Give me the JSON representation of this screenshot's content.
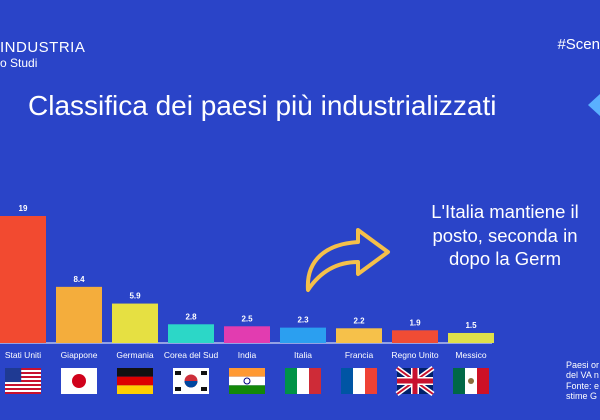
{
  "brand": {
    "line1": "INDUSTRIA",
    "line2": "o Studi"
  },
  "hashtag": "#Scen",
  "title": "Classifica dei paesi più industrializzati",
  "note": {
    "lines": [
      "L'Italia mantiene il",
      "posto, seconda in",
      "dopo la Germ"
    ]
  },
  "sources": {
    "lines": [
      "Paesi or",
      "del VA n",
      "Fonte: e",
      "stime G"
    ]
  },
  "colors": {
    "background": "#2a44c8",
    "arrow": "#f5c04a",
    "baseline": "#ffffff"
  },
  "chart_data": {
    "type": "bar",
    "categories": [
      "Stati Uniti",
      "Giappone",
      "Germania",
      "Corea del Sud",
      "India",
      "Italia",
      "Francia",
      "Regno Unito",
      "Messico"
    ],
    "values": [
      19,
      8.4,
      5.9,
      2.8,
      2.5,
      2.3,
      2.2,
      1.9,
      1.5
    ],
    "value_labels": [
      "19",
      "8.4",
      "5.9",
      "2.8",
      "2.5",
      "2.3",
      "2.2",
      "1.9",
      "1.5"
    ],
    "bar_colors": [
      "#f24a30",
      "#f4ad3c",
      "#e6e042",
      "#2cd7c7",
      "#e23cb0",
      "#2b9ff0",
      "#f6c14a",
      "#f04c34",
      "#dfe04a"
    ],
    "flags": [
      "us-flag-icon",
      "japan-flag-icon",
      "germany-flag-icon",
      "south-korea-flag-icon",
      "india-flag-icon",
      "italy-flag-icon",
      "france-flag-icon",
      "uk-flag-icon",
      "mexico-flag-icon"
    ],
    "title": "",
    "xlabel": "",
    "ylabel": "",
    "ylim": [
      0,
      19
    ],
    "grid": false,
    "legend": "none"
  }
}
